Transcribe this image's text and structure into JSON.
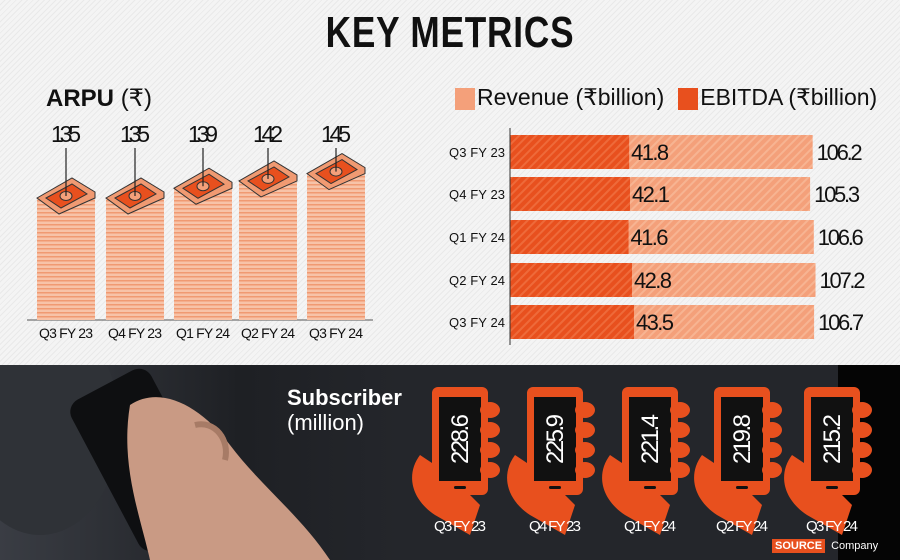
{
  "title": "KEY METRICS",
  "colors": {
    "accent": "#e8501e",
    "light": "#f4a07a",
    "dark": "#24262b"
  },
  "chart_data": [
    {
      "type": "bar",
      "title": "ARPU (₹)",
      "title_main": "ARPU",
      "title_unit": "(₹)",
      "categories": [
        "Q3 FY 23",
        "Q4 FY 23",
        "Q1 FY 24",
        "Q2 FY 24",
        "Q3 FY 24"
      ],
      "values": [
        135,
        135,
        139,
        142,
        145
      ]
    },
    {
      "type": "bar",
      "orientation": "horizontal",
      "categories": [
        "Q3 FY 23",
        "Q4 FY 23",
        "Q1 FY 24",
        "Q2 FY 24",
        "Q3 FY 24"
      ],
      "series": [
        {
          "name": "Revenue (₹billion)",
          "values": [
            106.2,
            105.3,
            106.6,
            107.2,
            106.7
          ],
          "color": "#f4a07a"
        },
        {
          "name": "EBITDA (₹billion)",
          "values": [
            41.8,
            42.1,
            41.6,
            42.8,
            43.5
          ],
          "color": "#e8501e"
        }
      ],
      "legend": "top"
    },
    {
      "type": "bar",
      "title": "Subscriber (million)",
      "title_main": "Subscriber",
      "title_unit": "(million)",
      "categories": [
        "Q3 FY 23",
        "Q4 FY 23",
        "Q1 FY 24",
        "Q2 FY 24",
        "Q3 FY 24"
      ],
      "values": [
        228.6,
        225.9,
        221.4,
        219.8,
        215.2
      ]
    }
  ],
  "source": {
    "label": "SOURCE",
    "value": "Company"
  }
}
